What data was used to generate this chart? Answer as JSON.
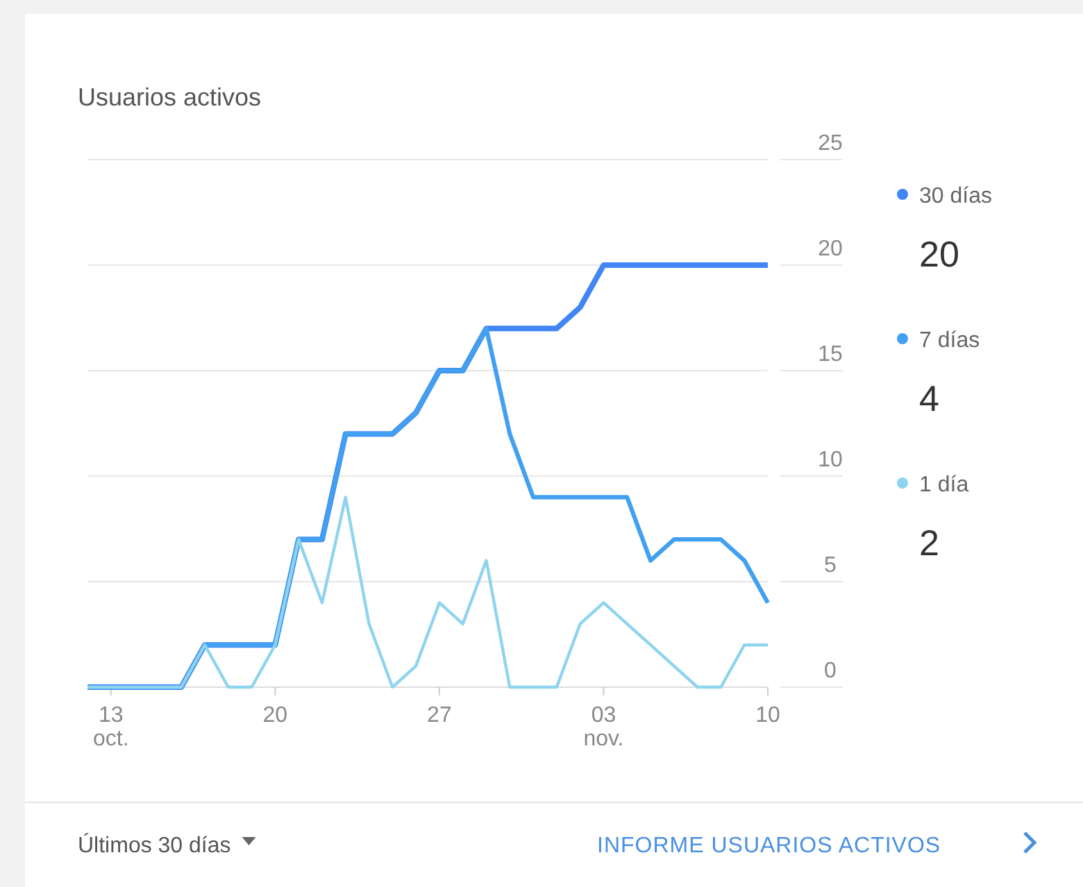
{
  "chart_data": {
    "type": "line",
    "title": "Usuarios activos",
    "x": [
      "--10-12",
      "--10-13",
      "--10-14",
      "--10-15",
      "--10-16",
      "--10-17",
      "--10-18",
      "--10-19",
      "--10-20",
      "--10-21",
      "--10-22",
      "--10-23",
      "--10-24",
      "--10-25",
      "--10-26",
      "--10-27",
      "--10-28",
      "--10-29",
      "--10-30",
      "--10-31",
      "--11-01",
      "--11-02",
      "--11-03",
      "--11-04",
      "--11-05",
      "--11-06",
      "--11-07",
      "--11-08",
      "--11-09",
      "--11-10"
    ],
    "series": [
      {
        "name": "30 días",
        "color": "#4285f4",
        "values": [
          0,
          0,
          0,
          0,
          0,
          2,
          2,
          2,
          2,
          7,
          7,
          12,
          12,
          12,
          13,
          15,
          15,
          17,
          17,
          17,
          17,
          18,
          20,
          20,
          20,
          20,
          20,
          20,
          20,
          20
        ]
      },
      {
        "name": "7 días",
        "color": "#42a0f0",
        "values": [
          0,
          0,
          0,
          0,
          0,
          2,
          2,
          2,
          2,
          7,
          7,
          12,
          12,
          12,
          13,
          15,
          15,
          17,
          12,
          9,
          9,
          9,
          9,
          9,
          6,
          7,
          7,
          7,
          6,
          4
        ]
      },
      {
        "name": "1 día",
        "color": "#8fd4ee",
        "values": [
          0,
          0,
          0,
          0,
          0,
          2,
          0,
          0,
          2,
          7,
          4,
          9,
          3,
          0,
          1,
          4,
          3,
          6,
          0,
          0,
          0,
          3,
          4,
          3,
          2,
          1,
          0,
          0,
          2,
          2
        ]
      }
    ],
    "xlim": [
      "--10-12",
      "--11-10"
    ],
    "xticks": [
      {
        "value": "--10-13",
        "label": "13\noct."
      },
      {
        "value": "--10-20",
        "label": "20"
      },
      {
        "value": "--10-27",
        "label": "27"
      },
      {
        "value": "--11-03",
        "label": "03\nnov."
      },
      {
        "value": "--11-10",
        "label": "10"
      }
    ],
    "ylim": [
      0,
      25
    ],
    "yticks": [
      0,
      5,
      10,
      15,
      20,
      25
    ],
    "grid": "y",
    "legend": "right",
    "marker": "none",
    "line_style": "solid",
    "annotations": [
      "20",
      "4",
      "2",
      "Últimos 30 días",
      "INFORME USUARIOS ACTIVOS"
    ]
  }
}
